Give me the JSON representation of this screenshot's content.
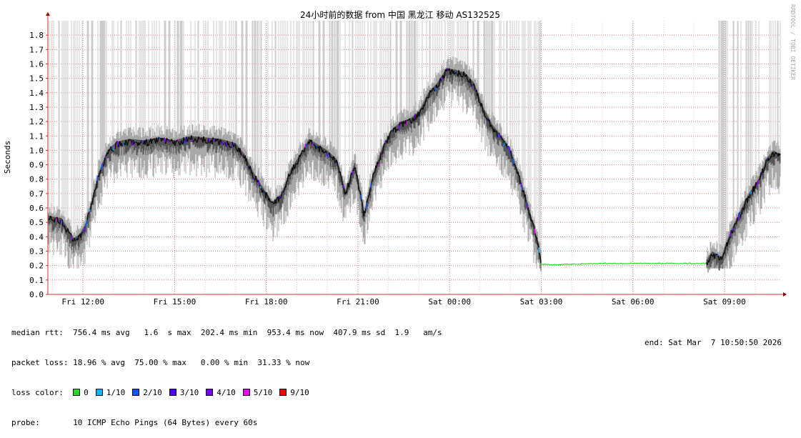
{
  "watermark": "RRDTOOL / TOBI OETIKER",
  "stats": {
    "median_rtt_label": "median rtt:",
    "median_rtt_values": "756.4 ms avg   1.6  s max  202.4 ms min  953.4 ms now  407.9 ms sd  1.9   am/s",
    "packet_loss_label": "packet loss:",
    "packet_loss_values": "18.96 % avg  75.00 % max   0.00 % min  31.33 % now",
    "loss_color_label": "loss color:",
    "probe_label": "probe:",
    "probe_values": "10 ICMP Echo Pings (64 Bytes) every 60s",
    "end_label": "end: Sat Mar  7 10:50:50 2026"
  },
  "loss_legend": [
    {
      "label": "0",
      "color": "#22dd22"
    },
    {
      "label": "1/10",
      "color": "#00b8ff"
    },
    {
      "label": "2/10",
      "color": "#0059ff"
    },
    {
      "label": "3/10",
      "color": "#5500ff"
    },
    {
      "label": "4/10",
      "color": "#7a00ff"
    },
    {
      "label": "5/10",
      "color": "#ed00ff"
    },
    {
      "label": "9/10",
      "color": "#ff0000"
    }
  ],
  "chart_data": {
    "type": "line",
    "title": "24小时前的数据 from  中国 黑龙江 移动 AS132525",
    "ylabel": "Seconds",
    "xlabel": "",
    "ylim": [
      0,
      1.9
    ],
    "yticks": [
      "0.0",
      "0.1",
      "0.2",
      "0.3",
      "0.4",
      "0.5",
      "0.6",
      "0.7",
      "0.8",
      "0.9",
      "1.0",
      "1.1",
      "1.2",
      "1.3",
      "1.4",
      "1.5",
      "1.6",
      "1.7",
      "1.8"
    ],
    "xlim_hours": [
      10.85,
      34.85
    ],
    "xticks": [
      {
        "label": "Fri 12:00",
        "hour": 12
      },
      {
        "label": "Fri 15:00",
        "hour": 15
      },
      {
        "label": "Fri 18:00",
        "hour": 18
      },
      {
        "label": "Fri 21:00",
        "hour": 21
      },
      {
        "label": "Sat 00:00",
        "hour": 24
      },
      {
        "label": "Sat 03:00",
        "hour": 27
      },
      {
        "label": "Sat 06:00",
        "hour": 30
      },
      {
        "label": "Sat 09:00",
        "hour": 33
      }
    ],
    "grid": true,
    "series": [
      {
        "points": [
          [
            10.85,
            0.53
          ],
          [
            11.0,
            0.52
          ],
          [
            11.3,
            0.51
          ],
          [
            11.5,
            0.44
          ],
          [
            11.7,
            0.37
          ],
          [
            11.9,
            0.4
          ],
          [
            12.1,
            0.48
          ],
          [
            12.3,
            0.65
          ],
          [
            12.5,
            0.82
          ],
          [
            12.8,
            0.98
          ],
          [
            13.1,
            1.04
          ],
          [
            13.5,
            1.06
          ],
          [
            14.0,
            1.05
          ],
          [
            14.5,
            1.07
          ],
          [
            15.0,
            1.05
          ],
          [
            15.5,
            1.08
          ],
          [
            16.0,
            1.07
          ],
          [
            16.5,
            1.06
          ],
          [
            17.0,
            1.03
          ],
          [
            17.3,
            0.95
          ],
          [
            17.6,
            0.82
          ],
          [
            17.9,
            0.72
          ],
          [
            18.2,
            0.62
          ],
          [
            18.5,
            0.68
          ],
          [
            18.8,
            0.85
          ],
          [
            19.1,
            0.95
          ],
          [
            19.4,
            1.06
          ],
          [
            19.7,
            1.02
          ],
          [
            20.0,
            0.98
          ],
          [
            20.3,
            0.92
          ],
          [
            20.6,
            0.7
          ],
          [
            20.9,
            0.9
          ],
          [
            21.2,
            0.55
          ],
          [
            21.5,
            0.82
          ],
          [
            21.8,
            1.0
          ],
          [
            22.1,
            1.12
          ],
          [
            22.4,
            1.18
          ],
          [
            22.7,
            1.2
          ],
          [
            23.0,
            1.25
          ],
          [
            23.3,
            1.38
          ],
          [
            23.6,
            1.45
          ],
          [
            23.9,
            1.55
          ],
          [
            24.2,
            1.54
          ],
          [
            24.5,
            1.52
          ],
          [
            24.8,
            1.45
          ],
          [
            25.1,
            1.28
          ],
          [
            25.4,
            1.16
          ],
          [
            25.7,
            1.08
          ],
          [
            26.0,
            0.98
          ],
          [
            26.3,
            0.8
          ],
          [
            26.6,
            0.58
          ],
          [
            26.9,
            0.35
          ],
          [
            27.0,
            0.21
          ],
          [
            27.5,
            0.205
          ],
          [
            28.0,
            0.21
          ],
          [
            29.0,
            0.215
          ],
          [
            30.0,
            0.215
          ],
          [
            31.0,
            0.215
          ],
          [
            32.0,
            0.215
          ],
          [
            32.4,
            0.215
          ],
          [
            32.6,
            0.28
          ],
          [
            32.9,
            0.24
          ],
          [
            33.2,
            0.42
          ],
          [
            33.5,
            0.55
          ],
          [
            33.8,
            0.68
          ],
          [
            34.1,
            0.78
          ],
          [
            34.4,
            0.93
          ],
          [
            34.6,
            0.98
          ],
          [
            34.85,
            0.95
          ]
        ]
      }
    ]
  }
}
